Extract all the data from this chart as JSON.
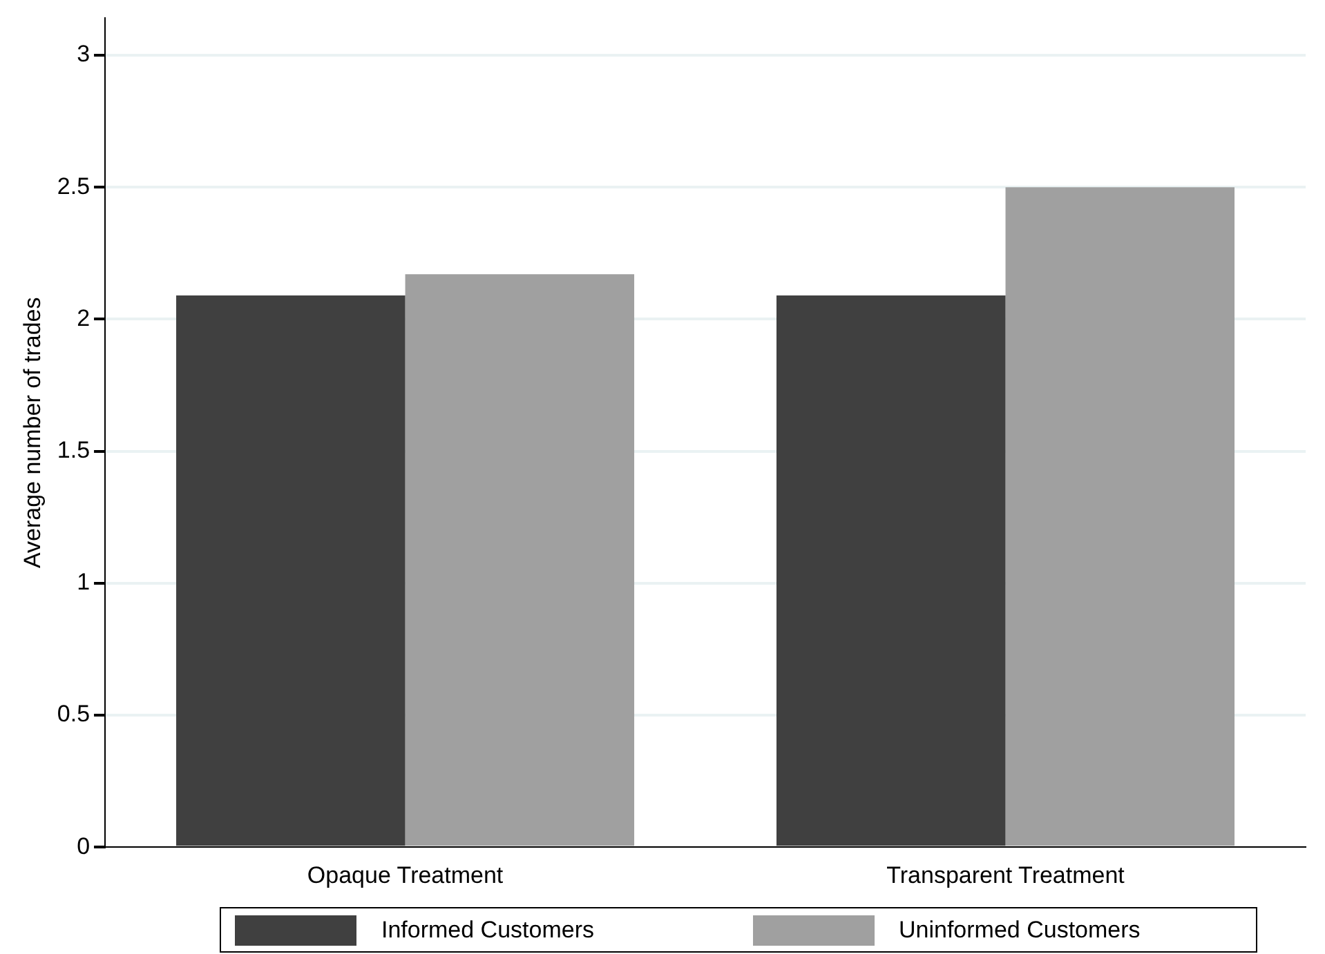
{
  "chart_data": {
    "type": "bar",
    "ylabel": "Average number of trades",
    "categories": [
      "Opaque Treatment",
      "Transparent Treatment"
    ],
    "series": [
      {
        "name": "Informed Customers",
        "color": "#404040",
        "values": [
          2.09,
          2.09
        ]
      },
      {
        "name": "Uninformed Customers",
        "color": "#a0a0a0",
        "values": [
          2.17,
          2.5
        ]
      }
    ],
    "ylim": [
      0,
      3.14
    ],
    "yticks": [
      0,
      0.5,
      1,
      1.5,
      2,
      2.5,
      3
    ],
    "grid": "y",
    "legend": "bottom"
  }
}
